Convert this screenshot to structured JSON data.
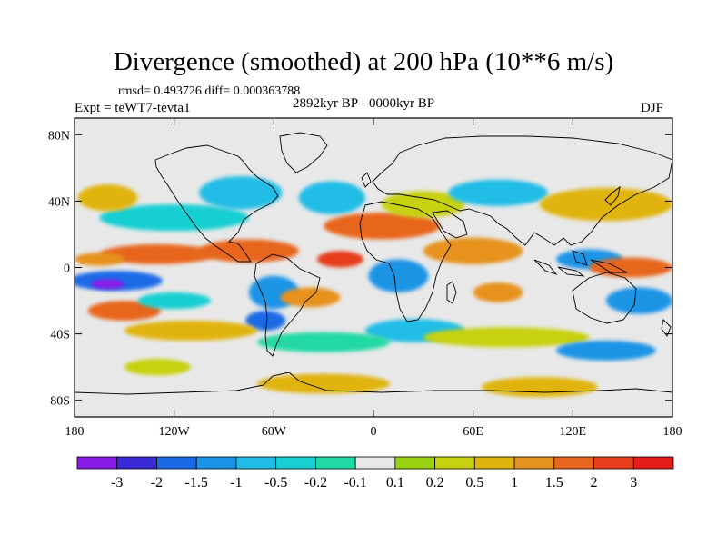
{
  "title": "Divergence (smoothed) at 200 hPa (10**6 m/s)",
  "stats_line": "rmsd= 0.493726 diff= 0.000363788",
  "experiment": "Expt = teWT7-tevta1",
  "period": "2892kyr BP - 0000kyr BP",
  "season": "DJF",
  "axes": {
    "lat_ticks": [
      {
        "value": 80,
        "label": "80N"
      },
      {
        "value": 40,
        "label": "40N"
      },
      {
        "value": 0,
        "label": "0"
      },
      {
        "value": -40,
        "label": "40S"
      },
      {
        "value": -80,
        "label": "80S"
      }
    ],
    "lon_ticks": [
      {
        "value": -180,
        "label": "180"
      },
      {
        "value": -120,
        "label": "120W"
      },
      {
        "value": -60,
        "label": "60W"
      },
      {
        "value": 0,
        "label": "0"
      },
      {
        "value": 60,
        "label": "60E"
      },
      {
        "value": 120,
        "label": "120E"
      },
      {
        "value": 180,
        "label": "180"
      }
    ]
  },
  "colorbar": {
    "colors": [
      "#8a1ce8",
      "#3a2ad6",
      "#1a6ae6",
      "#1a94e6",
      "#22bde6",
      "#18cfd2",
      "#22d9a4",
      "#e8e8e8",
      "#9ad212",
      "#c7d10f",
      "#e0b40d",
      "#e6921e",
      "#e8661f",
      "#e63e1e",
      "#e31c1c"
    ],
    "labels": [
      "-3",
      "-2",
      "-1.5",
      "-1",
      "-0.5",
      "-0.2",
      "-0.1",
      "0.1",
      "0.2",
      "0.5",
      "1",
      "1.5",
      "2",
      "3"
    ]
  },
  "anomaly_fields": [
    {
      "lon": -155,
      "lat": -8,
      "rlon": 28,
      "rlat": 6,
      "level": 2
    },
    {
      "lon": -160,
      "lat": -10,
      "rlon": 10,
      "rlat": 3,
      "level": 0
    },
    {
      "lon": -130,
      "lat": 8,
      "rlon": 35,
      "rlat": 6,
      "level": 12
    },
    {
      "lon": -165,
      "lat": 5,
      "rlon": 15,
      "rlat": 4,
      "level": 11
    },
    {
      "lon": -120,
      "lat": 30,
      "rlon": 45,
      "rlat": 8,
      "level": 5
    },
    {
      "lon": -160,
      "lat": 42,
      "rlon": 18,
      "rlat": 8,
      "level": 10
    },
    {
      "lon": -150,
      "lat": -26,
      "rlon": 22,
      "rlat": 6,
      "level": 12
    },
    {
      "lon": -120,
      "lat": -20,
      "rlon": 22,
      "rlat": 5,
      "level": 5
    },
    {
      "lon": -80,
      "lat": 45,
      "rlon": 25,
      "rlat": 10,
      "level": 4
    },
    {
      "lon": -75,
      "lat": 10,
      "rlon": 30,
      "rlat": 7,
      "level": 12
    },
    {
      "lon": -60,
      "lat": -15,
      "rlon": 15,
      "rlat": 10,
      "level": 3
    },
    {
      "lon": -65,
      "lat": -32,
      "rlon": 12,
      "rlat": 6,
      "level": 2
    },
    {
      "lon": -25,
      "lat": 42,
      "rlon": 20,
      "rlat": 10,
      "level": 4
    },
    {
      "lon": -20,
      "lat": 5,
      "rlon": 14,
      "rlat": 5,
      "level": 13
    },
    {
      "lon": -38,
      "lat": -18,
      "rlon": 18,
      "rlat": 6,
      "level": 11
    },
    {
      "lon": 5,
      "lat": 25,
      "rlon": 35,
      "rlat": 8,
      "level": 12
    },
    {
      "lon": 30,
      "lat": 38,
      "rlon": 25,
      "rlat": 8,
      "level": 9
    },
    {
      "lon": 15,
      "lat": -5,
      "rlon": 18,
      "rlat": 10,
      "level": 3
    },
    {
      "lon": 25,
      "lat": -38,
      "rlon": 30,
      "rlat": 7,
      "level": 4
    },
    {
      "lon": 60,
      "lat": 10,
      "rlon": 30,
      "rlat": 8,
      "level": 11
    },
    {
      "lon": 75,
      "lat": 45,
      "rlon": 30,
      "rlat": 8,
      "level": 4
    },
    {
      "lon": 75,
      "lat": -15,
      "rlon": 15,
      "rlat": 6,
      "level": 11
    },
    {
      "lon": 130,
      "lat": 5,
      "rlon": 20,
      "rlat": 6,
      "level": 3
    },
    {
      "lon": 140,
      "lat": 38,
      "rlon": 40,
      "rlat": 10,
      "level": 10
    },
    {
      "lon": 155,
      "lat": 0,
      "rlon": 25,
      "rlat": 6,
      "level": 12
    },
    {
      "lon": 160,
      "lat": -20,
      "rlon": 20,
      "rlat": 8,
      "level": 3
    },
    {
      "lon": -110,
      "lat": -38,
      "rlon": 40,
      "rlat": 6,
      "level": 10
    },
    {
      "lon": -30,
      "lat": -45,
      "rlon": 40,
      "rlat": 6,
      "level": 6
    },
    {
      "lon": 80,
      "lat": -42,
      "rlon": 50,
      "rlat": 6,
      "level": 9
    },
    {
      "lon": 140,
      "lat": -50,
      "rlon": 30,
      "rlat": 6,
      "level": 3
    },
    {
      "lon": -30,
      "lat": -70,
      "rlon": 40,
      "rlat": 6,
      "level": 10
    },
    {
      "lon": 100,
      "lat": -72,
      "rlon": 35,
      "rlat": 6,
      "level": 10
    },
    {
      "lon": -130,
      "lat": -60,
      "rlon": 20,
      "rlat": 5,
      "level": 9
    }
  ]
}
